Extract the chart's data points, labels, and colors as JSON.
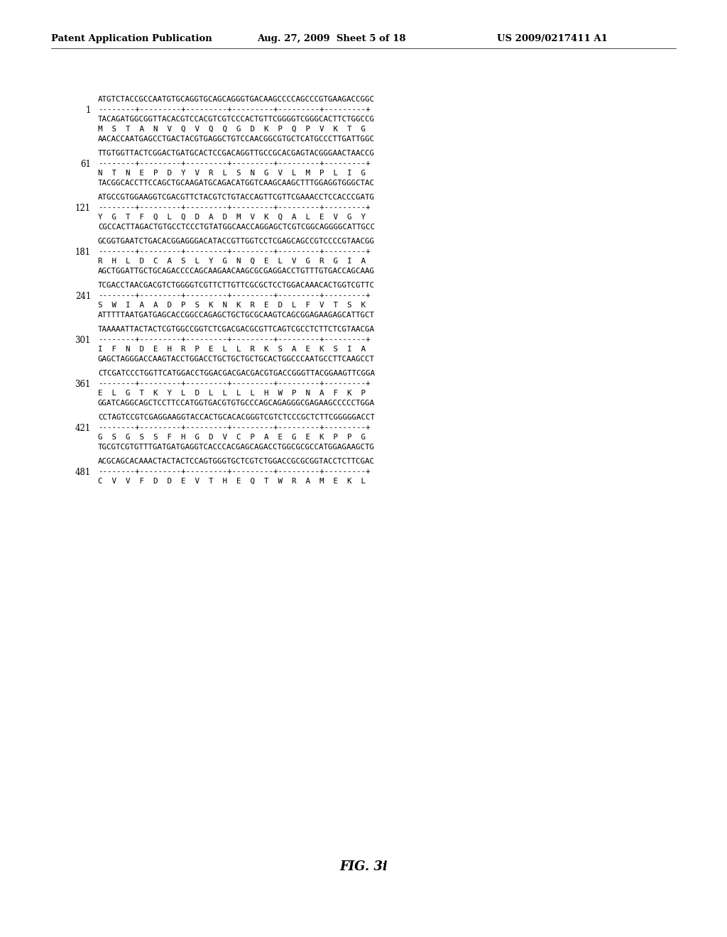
{
  "header_left": "Patent Application Publication",
  "header_mid": "Aug. 27, 2009  Sheet 5 of 18",
  "header_right": "US 2009/0217411 A1",
  "figure_label": "FIG. 3i",
  "background_color": "#ffffff",
  "sequence_blocks": [
    {
      "number": "1",
      "lines": [
        "ATGTCTACCGCCAATGTGCAGGTGCAGCAGGGTGACAAGCCCCAGCCCGTGAAGACCGGC",
        "--------+---------+---------+---------+---------+---------+",
        "TACAGATGGCGGTTACACGTCCACGTCGTCCCACTGTTCGGGGTCGGGCACTTCTGGCCG",
        "M  S  T  A  N  V  Q  V  Q  Q  G  D  K  P  Q  P  V  K  T  G",
        "AACACCAATGAGCCTGACTACGTGAGGCTGTCCAACGGCGTGCTCATGCCCTTGATTGGC"
      ]
    },
    {
      "number": "61",
      "lines": [
        "TTGTGGTTACTCGGACTGATGCACTCCGACAGGTTGCCGCACGAGTACGGGAACTAACCG",
        "--------+---------+---------+---------+---------+---------+",
        "N  T  N  E  P  D  Y  V  R  L  S  N  G  V  L  M  P  L  I  G",
        "TACGGCACCTTCCAGCTGCAAGATGCAGACATGGTCAAGCAAGCTTTGGAGGTGGGCTAC"
      ]
    },
    {
      "number": "121",
      "lines": [
        "ATGCCGTGGAAGGTCGACGTTCTACGTCTGTACCAGTTCGTTCGAAACCTCCACCCGATG",
        "--------+---------+---------+---------+---------+---------+",
        "Y  G  T  F  Q  L  Q  D  A  D  M  V  K  Q  A  L  E  V  G  Y",
        "CGCCACTTAGACTGTGCCTCCCTGTATGGCAACCAGGAGCTCGTCGGCAGGGGCATTGCC"
      ]
    },
    {
      "number": "181",
      "lines": [
        "GCGGTGAATCTGACACGGAGGGACATACCGTTGGTCCTCGAGCAGCCGTCCCCGTAACGG",
        "--------+---------+---------+---------+---------+---------+",
        "R  H  L  D  C  A  S  L  Y  G  N  Q  E  L  V  G  R  G  I  A",
        "AGCTGGATTGCTGCAGACCCCAGCAAGAACAAGCGCGAGGACCTGTTTGTGACCAGCAAG"
      ]
    },
    {
      "number": "241",
      "lines": [
        "TCGACCTAACGACGTCTGGGGTCGTTCTTGTTCGCGCTCCTGGACAAACACTGGTCGTTC",
        "--------+---------+---------+---------+---------+---------+",
        "S  W  I  A  A  D  P  S  K  N  K  R  E  D  L  F  V  T  S  K",
        "ATTTTTAATGATGAGCACCGGCCAGAGCTGCTGCGCAAGTCAGCGGAGAAGAGCATTGCT"
      ]
    },
    {
      "number": "301",
      "lines": [
        "TAAAAATTACTACTCGTGGCCGGTCTCGACGACGCGTTCAGTCGCCTCTTCTCGTAACGA",
        "--------+---------+---------+---------+---------+---------+",
        "I  F  N  D  E  H  R  P  E  L  L  R  K  S  A  E  K  S  I  A",
        "GAGCTAGGGACCAAGTACCTGGACCTGCTGCTGCTGCACTGGCCCAATGCCTTCAAGCCT"
      ]
    },
    {
      "number": "361",
      "lines": [
        "CTCGATCCCTGGTTCATGGACCTGGACGACGACGACGTGACCGGGTTACGGAAGTTCGGA",
        "--------+---------+---------+---------+---------+---------+",
        "E  L  G  T  K  Y  L  D  L  L  L  L  H  W  P  N  A  F  K  P",
        "GGATCAGGCAGCTCCTTCCATGGTGACGTGTGCCCAGCAGAGGGCGAGAAGCCCCCTGGA"
      ]
    },
    {
      "number": "421",
      "lines": [
        "CCTAGTCCGTCGAGGAAGGTACCACTGCACACGGGTCGTCTCCCGCTCTTCGGGGGACCT",
        "--------+---------+---------+---------+---------+---------+",
        "G  S  G  S  S  F  H  G  D  V  C  P  A  E  G  E  K  P  P  G",
        "TGCGTCGTGTTTGATGATGAGGTCACCCACGAGCAGACCTGGCGCGCCATGGAGAAGCTG"
      ]
    },
    {
      "number": "481",
      "lines": [
        "ACGCAGCACAAACTACTACTCCAGTGGGTGCTCGTCTGGACCGCGCGGTACCTCTTCGAC",
        "--------+---------+---------+---------+---------+---------+",
        "C  V  V  F  D  D  E  V  T  H  E  Q  T  W  R  A  M  E  K  L"
      ]
    }
  ]
}
